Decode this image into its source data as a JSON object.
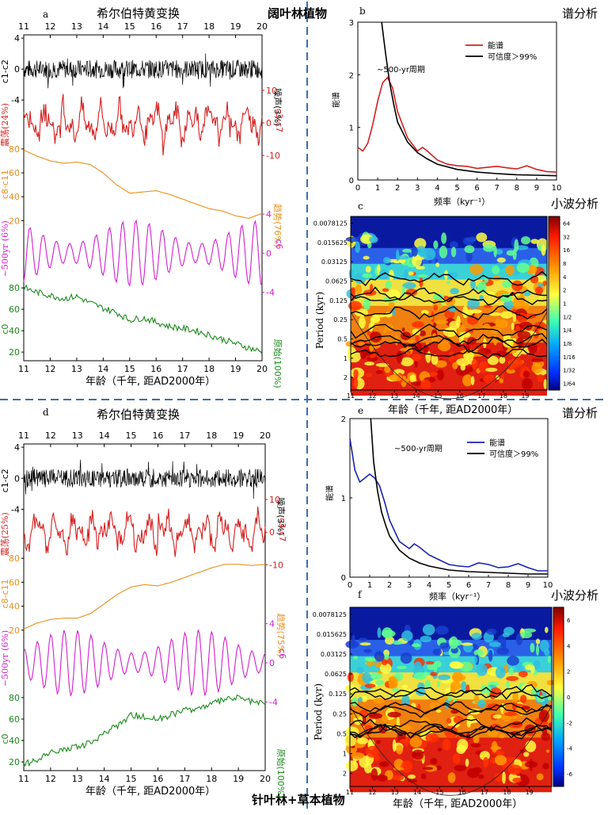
{
  "divider_color": "#3a6fb0",
  "top_group_label": "阔叶林植物",
  "bottom_group_label": "针叶林+草本植物",
  "panels": {
    "a": {
      "letter": "a",
      "title": "希尔伯特黄变换",
      "xlabel": "年龄（千年, 距AD2000年）",
      "xticks": [
        "11",
        "12",
        "13",
        "14",
        "15",
        "16",
        "17",
        "18",
        "19",
        "20"
      ],
      "top_xticks": [
        "11",
        "12",
        "13",
        "14",
        "15",
        "16",
        "17",
        "18",
        "19",
        "20"
      ]
    },
    "b": {
      "letter": "b",
      "title": "谱分析",
      "ylabel": "能谱",
      "xlabel": "频率（kyr⁻¹）",
      "annotation": "~500-yr周期",
      "legend": [
        "能谱",
        "可信度＞99%"
      ],
      "xticks": [
        "0",
        "1",
        "2",
        "3",
        "4",
        "5",
        "6",
        "7",
        "8",
        "9",
        "10"
      ],
      "yticks": [
        "0",
        "1",
        "2",
        "3"
      ]
    },
    "c": {
      "letter": "c",
      "title": "小波分析",
      "ylabel": "Period (kyr)",
      "xlabel": "年龄（千年, 距AD2000年）",
      "yticks": [
        "0.0078125",
        "0.015625",
        "0.03125",
        "0.0625",
        "0.125",
        "0.25",
        "0.5",
        "1",
        "2"
      ],
      "xticks": [
        "11",
        "12",
        "13",
        "14",
        "15",
        "16",
        "17",
        "18",
        "19"
      ],
      "colorbar": [
        "64",
        "32",
        "16",
        "8",
        "4",
        "2",
        "1",
        "1/2",
        "1/4",
        "1/8",
        "1/16",
        "1/32",
        "1/64"
      ]
    },
    "d": {
      "letter": "d",
      "title": "希尔伯特黄变换",
      "xlabel": "年龄（千年, 距AD2000年）",
      "xticks": [
        "11",
        "12",
        "13",
        "14",
        "15",
        "16",
        "17",
        "18",
        "19",
        "20"
      ],
      "top_xticks": [
        "11",
        "12",
        "13",
        "14",
        "15",
        "16",
        "17",
        "18",
        "19",
        "20"
      ]
    },
    "e": {
      "letter": "e",
      "title": "谱分析",
      "ylabel": "能谱",
      "xlabel": "频率（kyr⁻¹）",
      "annotation": "~500-yr周期",
      "legend": [
        "能谱",
        "可信度＞99%"
      ],
      "xticks": [
        "0",
        "1",
        "2",
        "3",
        "4",
        "5",
        "6",
        "7",
        "8",
        "9",
        "10"
      ],
      "yticks": [
        "0",
        "1",
        "2"
      ]
    },
    "f": {
      "letter": "f",
      "title": "小波分析",
      "ylabel": "Period (kyr)",
      "xlabel": "年龄（千年, 距AD2000年）",
      "yticks": [
        "0.0078125",
        "0.015625",
        "0.03125",
        "0.0625",
        "0.125",
        "0.25",
        "0.5",
        "1",
        "2"
      ],
      "xticks": [
        "11",
        "12",
        "13",
        "14",
        "15",
        "16",
        "17",
        "18",
        "19"
      ],
      "colorbar": [
        "6",
        "4",
        "2",
        "0",
        "-2",
        "-4",
        "-6"
      ]
    }
  },
  "chart_data": [
    {
      "id": "a",
      "type": "line",
      "title": "希尔伯特黄变换",
      "xlabel": "年龄（千年, 距AD2000年）",
      "xlim": [
        11,
        20
      ],
      "subplots": [
        {
          "name": "c1-c2",
          "right_label": "噪声(3%)",
          "color": "#000000",
          "yticks": [
            "4",
            "0",
            "-4"
          ],
          "ylim": [
            -4,
            4
          ],
          "kind": "noise"
        },
        {
          "name": "c3-c7",
          "left_label": "震荡(24%)",
          "color": "#d42020",
          "yticks": [
            "10",
            "0",
            "-10"
          ],
          "ylim": [
            -10,
            10
          ],
          "kind": "osc"
        },
        {
          "name": "c8-c11",
          "right_label": "趋势(76%)",
          "color": "#e8901a",
          "yticks": [
            "80",
            "60",
            "40",
            "20"
          ],
          "ylim": [
            20,
            80
          ],
          "x": [
            11,
            11.5,
            12,
            12.5,
            13,
            13.5,
            14,
            14.5,
            15,
            15.5,
            16,
            16.5,
            17,
            17.5,
            18,
            18.5,
            19,
            19.5,
            20
          ],
          "values": [
            79,
            74,
            70,
            68,
            69,
            67,
            60,
            50,
            43,
            44,
            45,
            42,
            38,
            34,
            30,
            28,
            24,
            22,
            26
          ]
        },
        {
          "name": "c6",
          "left_label": "~500yr (6%)",
          "color": "#d020d0",
          "yticks": [
            "4",
            "0",
            "-4"
          ],
          "ylim": [
            -4,
            4
          ],
          "kind": "sine"
        },
        {
          "name": "c0",
          "right_label": "原始(100%)",
          "color": "#1a8a1a",
          "yticks": [
            "80",
            "60",
            "40",
            "20"
          ],
          "ylim": [
            15,
            85
          ],
          "x": [
            11,
            11.5,
            12,
            12.5,
            13,
            13.5,
            14,
            14.5,
            15,
            15.5,
            16,
            16.5,
            17,
            17.5,
            18,
            18.5,
            19,
            19.5,
            20
          ],
          "values": [
            80,
            76,
            73,
            70,
            72,
            66,
            61,
            57,
            50,
            52,
            48,
            44,
            42,
            40,
            36,
            32,
            28,
            24,
            20
          ]
        }
      ]
    },
    {
      "id": "b",
      "type": "line",
      "title": "谱分析",
      "xlabel": "频率（kyr⁻¹）",
      "ylabel": "能谱",
      "xlim": [
        0,
        10
      ],
      "ylim": [
        0,
        3
      ],
      "series": [
        {
          "name": "能谱",
          "color": "#d42020",
          "x": [
            0,
            0.25,
            0.5,
            0.75,
            1,
            1.25,
            1.5,
            1.75,
            2,
            2.5,
            3,
            3.25,
            3.5,
            4,
            4.5,
            5,
            5.5,
            6,
            6.5,
            7,
            7.5,
            8,
            8.5,
            9,
            9.5,
            10
          ],
          "values": [
            0.62,
            0.55,
            0.7,
            1.05,
            1.5,
            1.85,
            1.95,
            1.75,
            1.3,
            0.8,
            0.55,
            0.62,
            0.55,
            0.38,
            0.3,
            0.27,
            0.26,
            0.22,
            0.24,
            0.26,
            0.23,
            0.21,
            0.27,
            0.2,
            0.16,
            0.15
          ]
        },
        {
          "name": "可信度＞99%",
          "color": "#000000",
          "x": [
            1.2,
            1.4,
            1.6,
            1.8,
            2,
            2.5,
            3,
            3.5,
            4,
            5,
            6,
            7,
            8,
            9,
            10
          ],
          "values": [
            3.0,
            2.4,
            1.85,
            1.45,
            1.1,
            0.72,
            0.52,
            0.4,
            0.3,
            0.2,
            0.15,
            0.12,
            0.1,
            0.09,
            0.08
          ]
        }
      ]
    },
    {
      "id": "c",
      "type": "heatmap",
      "title": "小波分析",
      "xlabel": "年龄（千年, 距AD2000年）",
      "ylabel": "Period (kyr)",
      "xlim": [
        11,
        20
      ],
      "ylim": [
        0.0078125,
        2
      ],
      "colorbar": [
        "64",
        "32",
        "16",
        "8",
        "4",
        "2",
        "1",
        "1/2",
        "1/4",
        "1/8",
        "1/16",
        "1/32",
        "1/64"
      ]
    },
    {
      "id": "d",
      "type": "line",
      "title": "希尔伯特黄变换",
      "xlabel": "年龄（千年, 距AD2000年）",
      "xlim": [
        11,
        20
      ],
      "subplots": [
        {
          "name": "c1-c2",
          "right_label": "噪声(3%)",
          "color": "#000000",
          "yticks": [
            "4",
            "0",
            "-4"
          ],
          "ylim": [
            -4,
            4
          ],
          "kind": "noise"
        },
        {
          "name": "c3-c7",
          "left_label": "震荡(25%)",
          "color": "#d42020",
          "yticks": [
            "10",
            "0",
            "-10"
          ],
          "ylim": [
            -10,
            10
          ],
          "kind": "osc"
        },
        {
          "name": "c8-c11",
          "right_label": "趋势(75%)",
          "color": "#e8901a",
          "yticks": [
            "80",
            "60",
            "40",
            "20"
          ],
          "ylim": [
            20,
            80
          ],
          "x": [
            11,
            11.5,
            12,
            12.5,
            13,
            13.5,
            14,
            14.5,
            15,
            15.5,
            16,
            16.5,
            17,
            17.5,
            18,
            18.5,
            19,
            19.5,
            20
          ],
          "values": [
            21,
            26,
            29,
            30,
            30,
            34,
            42,
            50,
            56,
            58,
            57,
            60,
            64,
            68,
            72,
            75,
            75,
            74,
            75
          ]
        },
        {
          "name": "c6",
          "left_label": "~500yr (6%)",
          "color": "#d020d0",
          "yticks": [
            "4",
            "0",
            "-4"
          ],
          "ylim": [
            -4,
            4
          ],
          "kind": "sine"
        },
        {
          "name": "c0",
          "right_label": "原始(100%)",
          "color": "#1a8a1a",
          "yticks": [
            "80",
            "60",
            "40",
            "20"
          ],
          "ylim": [
            15,
            85
          ],
          "x": [
            11,
            11.5,
            12,
            12.5,
            13,
            13.5,
            14,
            14.5,
            15,
            15.5,
            16,
            16.5,
            17,
            17.5,
            18,
            18.5,
            19,
            19.5,
            20
          ],
          "values": [
            18,
            22,
            28,
            32,
            34,
            38,
            46,
            54,
            64,
            62,
            60,
            64,
            68,
            70,
            74,
            78,
            80,
            76,
            74
          ]
        }
      ]
    },
    {
      "id": "e",
      "type": "line",
      "title": "谱分析",
      "xlabel": "频率（kyr⁻¹）",
      "ylabel": "能谱",
      "xlim": [
        0,
        10
      ],
      "ylim": [
        0,
        2
      ],
      "series": [
        {
          "name": "能谱",
          "color": "#1a22b0",
          "x": [
            0,
            0.25,
            0.5,
            0.75,
            1,
            1.25,
            1.5,
            1.75,
            2,
            2.5,
            3,
            3.25,
            3.5,
            4,
            4.5,
            5,
            5.5,
            6,
            6.5,
            7,
            7.5,
            8,
            8.5,
            9,
            9.5,
            10
          ],
          "values": [
            1.75,
            1.35,
            1.2,
            1.25,
            1.3,
            1.25,
            1.15,
            0.95,
            0.72,
            0.45,
            0.36,
            0.42,
            0.38,
            0.28,
            0.22,
            0.16,
            0.14,
            0.13,
            0.18,
            0.16,
            0.12,
            0.13,
            0.17,
            0.12,
            0.08,
            0.08
          ]
        },
        {
          "name": "可信度＞99%",
          "color": "#000000",
          "x": [
            1.05,
            1.2,
            1.4,
            1.6,
            1.8,
            2,
            2.5,
            3,
            3.5,
            4,
            5,
            6,
            7,
            8,
            9,
            10
          ],
          "values": [
            2.0,
            1.45,
            1.08,
            0.82,
            0.66,
            0.52,
            0.34,
            0.24,
            0.18,
            0.14,
            0.09,
            0.07,
            0.06,
            0.05,
            0.04,
            0.04
          ]
        }
      ]
    },
    {
      "id": "f",
      "type": "heatmap",
      "title": "小波分析",
      "xlabel": "年龄（千年, 距AD2000年）",
      "ylabel": "Period (kyr)",
      "xlim": [
        11,
        20
      ],
      "ylim": [
        0.0078125,
        2
      ],
      "colorbar": [
        "6",
        "4",
        "2",
        "0",
        "-2",
        "-4",
        "-6"
      ]
    }
  ]
}
